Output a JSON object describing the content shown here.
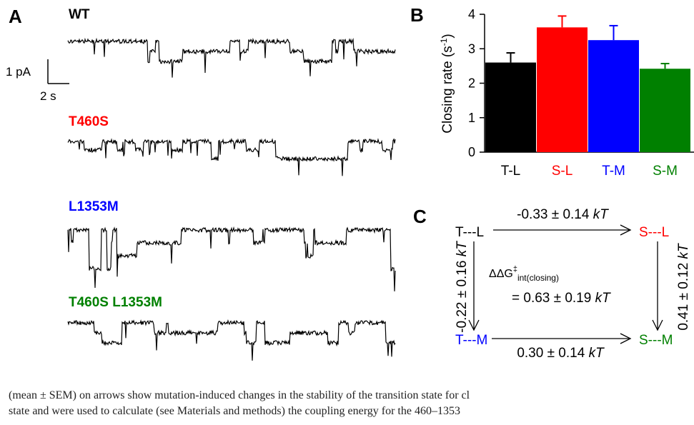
{
  "panels": {
    "a": {
      "letter": "A",
      "scale": {
        "current": "1 pA",
        "time": "2 s"
      },
      "traces": [
        {
          "label": "WT",
          "color": "#000000"
        },
        {
          "label": "T460S",
          "color": "#ff0000"
        },
        {
          "label": "L1353M",
          "color": "#0000ff"
        },
        {
          "label": "T460S L1353M",
          "color": "#008000"
        }
      ]
    },
    "b": {
      "letter": "B",
      "ylabel": "Closing rate (s",
      "ylabel_sup": "-1",
      "ylabel_close": ")"
    },
    "c": {
      "letter": "C",
      "nodes": {
        "tl": {
          "text": "T---L",
          "color": "#000000"
        },
        "sl": {
          "text": "S---L",
          "color": "#ff0000"
        },
        "tm": {
          "text": "T---M",
          "color": "#0000ff"
        },
        "sm": {
          "text": "S---M",
          "color": "#008000"
        }
      },
      "top_arrow": {
        "value": "-0.33 ± 0.14 ",
        "unit": "kT"
      },
      "bottom_arrow": {
        "value": "0.30 ± 0.14 ",
        "unit": "kT"
      },
      "left_arrow": {
        "value": "-0.22 ± 0.16 ",
        "unit": "kT"
      },
      "right_arrow": {
        "value": "0.41 ± 0.12 ",
        "unit": "kT"
      },
      "center": {
        "symbol": "ΔΔG",
        "superscript": "‡",
        "subscript": "int(closing)",
        "value": "= 0.63 ± 0.19 ",
        "unit": "kT"
      }
    }
  },
  "chart_data": {
    "type": "bar",
    "title": "",
    "categories": [
      "T-L",
      "S-L",
      "T-M",
      "S-M"
    ],
    "category_colors": [
      "#000000",
      "#ff0000",
      "#0000ff",
      "#008000"
    ],
    "values": [
      2.6,
      3.62,
      3.25,
      2.42
    ],
    "errors": [
      0.28,
      0.33,
      0.42,
      0.15
    ],
    "ylabel": "Closing rate (s-1)",
    "ylim": [
      0,
      4
    ],
    "yticks": [
      "0",
      "1",
      "2",
      "3",
      "4"
    ],
    "grid": false
  },
  "caption": {
    "line1": "(mean ± SEM) on arrows show mutation-induced changes in the stability of the transition state for cl",
    "line2": "state and were used to calculate (see Materials and methods) the coupling energy for the 460–1353"
  }
}
